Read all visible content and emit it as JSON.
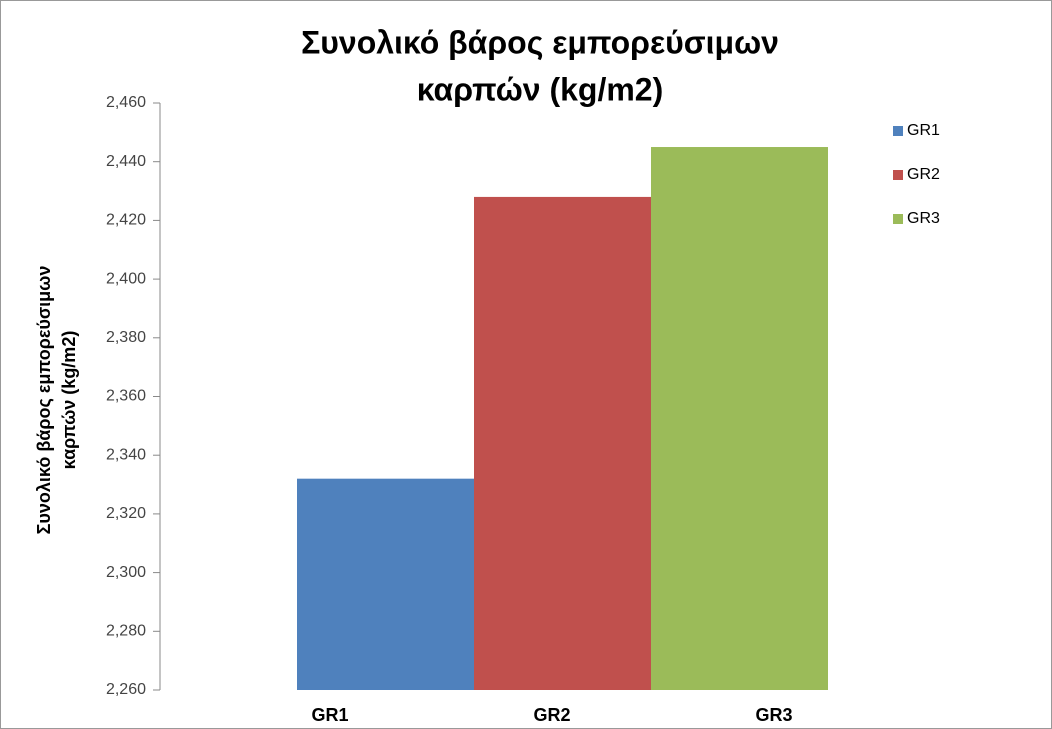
{
  "chart_data": {
    "type": "bar",
    "title": [
      "Συνολικό βάρος  εμπορεύσιμων",
      "καρπών (kg/m2)"
    ],
    "y_label": [
      "Συνολικό βάρος  εμπορεύσιμων",
      "καρπών (kg/m2)"
    ],
    "categories": [
      "GR1",
      "GR2",
      "GR3"
    ],
    "values": [
      2.332,
      2.428,
      2.445
    ],
    "colors": [
      "#4f81bd",
      "#c0504d",
      "#9bbb59"
    ],
    "ylim": [
      2.26,
      2.46
    ],
    "yticks": [
      {
        "value": 2.26,
        "label": "2,260"
      },
      {
        "value": 2.28,
        "label": "2,280"
      },
      {
        "value": 2.3,
        "label": "2,300"
      },
      {
        "value": 2.32,
        "label": "2,320"
      },
      {
        "value": 2.34,
        "label": "2,340"
      },
      {
        "value": 2.36,
        "label": "2,360"
      },
      {
        "value": 2.38,
        "label": "2,380"
      },
      {
        "value": 2.4,
        "label": "2,400"
      },
      {
        "value": 2.42,
        "label": "2,420"
      },
      {
        "value": 2.44,
        "label": "2,440"
      },
      {
        "value": 2.46,
        "label": "2,460"
      }
    ],
    "grid": false,
    "legend": "right"
  }
}
